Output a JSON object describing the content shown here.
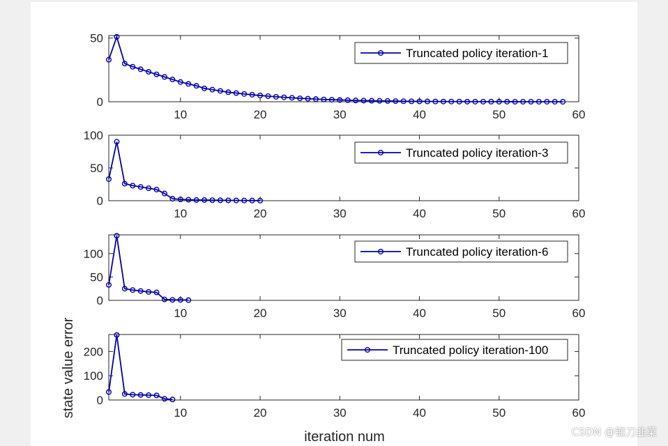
{
  "colors": {
    "series": "#0000a8",
    "axes": "#262626",
    "background": "#ffffff",
    "page": "#f0f0f0"
  },
  "watermark": "CSDN @镰刀韭菜",
  "chart_data": [
    {
      "type": "line",
      "legend": "Truncated policy iteration-1",
      "legend_position": "top-right",
      "xlim": [
        1,
        60
      ],
      "ylim": [
        0,
        52
      ],
      "xticks": [
        10,
        20,
        30,
        40,
        50,
        60
      ],
      "yticks": [
        0,
        50
      ],
      "marker": "circle",
      "x": [
        1,
        2,
        3,
        4,
        5,
        6,
        7,
        8,
        9,
        10,
        11,
        12,
        13,
        14,
        15,
        16,
        17,
        18,
        19,
        20,
        21,
        22,
        23,
        24,
        25,
        26,
        27,
        28,
        29,
        30,
        31,
        32,
        33,
        34,
        35,
        36,
        37,
        38,
        39,
        40,
        41,
        42,
        43,
        44,
        45,
        46,
        47,
        48,
        49,
        50,
        51,
        52,
        53,
        54,
        55,
        56,
        57,
        58
      ],
      "y": [
        33,
        51,
        30,
        27.5,
        25.5,
        23.5,
        21.5,
        19.5,
        17.5,
        15.5,
        14,
        12.5,
        10.5,
        9.5,
        8.5,
        7.5,
        6.8,
        6.1,
        5.5,
        4.9,
        4.4,
        3.9,
        3.5,
        3.1,
        2.7,
        2.4,
        2.1,
        1.8,
        1.6,
        1.4,
        1.2,
        1.0,
        0.9,
        0.8,
        0.7,
        0.6,
        0.5,
        0.4,
        0.35,
        0.3,
        0.25,
        0.2,
        0.17,
        0.15,
        0.12,
        0.1,
        0.08,
        0.07,
        0.06,
        0.05,
        0.04,
        0.03,
        0.02,
        0.02,
        0.01,
        0.01,
        0.01,
        0
      ]
    },
    {
      "type": "line",
      "legend": "Truncated policy iteration-3",
      "legend_position": "top-right",
      "xlim": [
        1,
        60
      ],
      "ylim": [
        0,
        100
      ],
      "xticks": [
        10,
        20,
        30,
        40,
        50,
        60
      ],
      "yticks": [
        0,
        50,
        100
      ],
      "marker": "circle",
      "x": [
        1,
        2,
        3,
        4,
        5,
        6,
        7,
        8,
        9,
        10,
        11,
        12,
        13,
        14,
        15,
        16,
        17,
        18,
        19,
        20
      ],
      "y": [
        33,
        90,
        26,
        23,
        21,
        19,
        17,
        11,
        3,
        2,
        1.5,
        1,
        1,
        0.8,
        0.6,
        0.5,
        0.4,
        0.3,
        0.2,
        0.1
      ]
    },
    {
      "type": "line",
      "legend": "Truncated policy iteration-6",
      "legend_position": "top-right",
      "xlim": [
        1,
        60
      ],
      "ylim": [
        0,
        140
      ],
      "xticks": [
        10,
        20,
        30,
        40,
        50,
        60
      ],
      "yticks": [
        0,
        50,
        100
      ],
      "marker": "circle",
      "x": [
        1,
        2,
        3,
        4,
        5,
        6,
        7,
        8,
        9,
        10,
        11
      ],
      "y": [
        33,
        138,
        25,
        22,
        20,
        18,
        17,
        2,
        1,
        1,
        0.5
      ]
    },
    {
      "type": "line",
      "legend": "Truncated policy iteration-100",
      "legend_position": "top-right",
      "xlim": [
        1,
        60
      ],
      "ylim": [
        0,
        270
      ],
      "xticks": [
        10,
        20,
        30,
        40,
        50,
        60
      ],
      "yticks": [
        0,
        100,
        200
      ],
      "marker": "circle",
      "x": [
        1,
        2,
        3,
        4,
        5,
        6,
        7,
        8,
        9
      ],
      "y": [
        33,
        268,
        25,
        22,
        21,
        20,
        19,
        5,
        2
      ]
    }
  ],
  "ylabel": "state value error",
  "xlabel": "iteration num"
}
